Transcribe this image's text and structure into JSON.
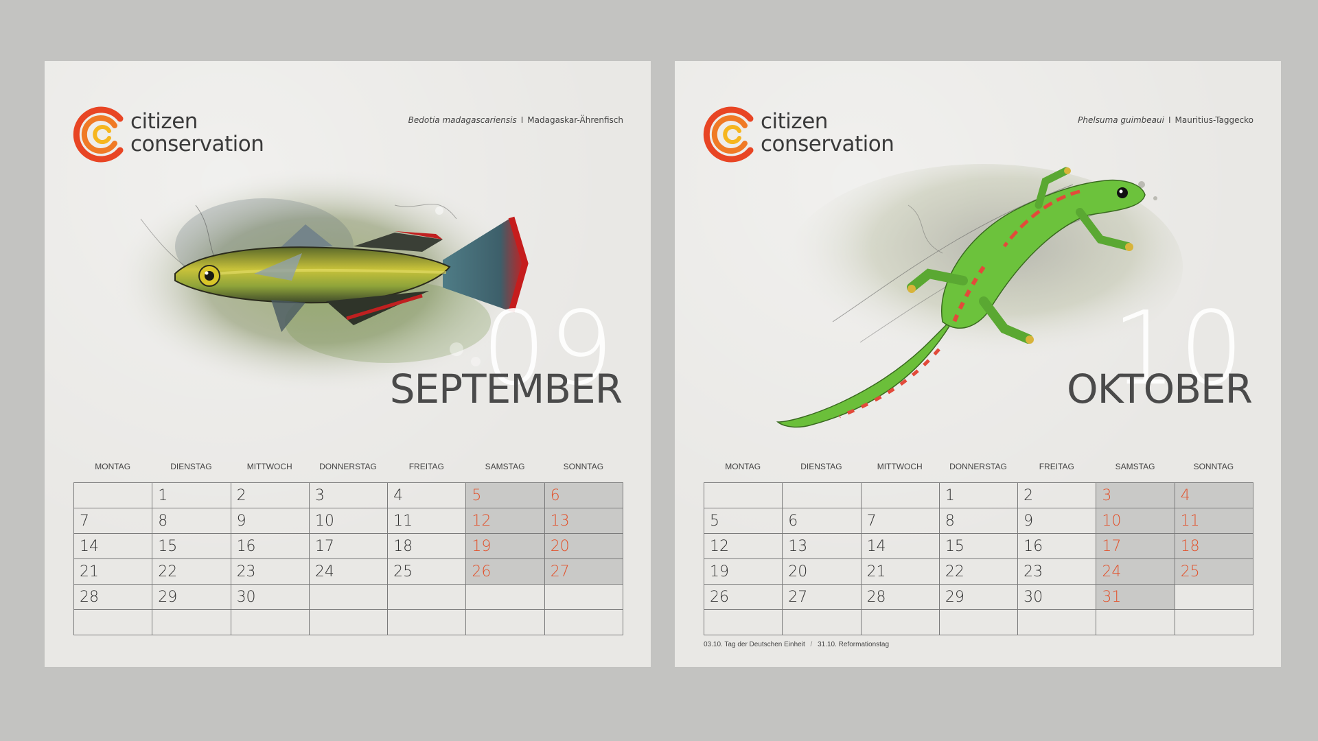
{
  "logo": {
    "line1": "citizen",
    "line2": "conservation"
  },
  "colors": {
    "weekend_text": "#e2522c",
    "weekend_bg": "#c9c9c7",
    "paper": "#e9e8e5",
    "background": "#c3c3c1"
  },
  "weekdays": [
    "MONTAG",
    "DIENSTAG",
    "MITTWOCH",
    "DONNERSTAG",
    "FREITAG",
    "SAMSTAG",
    "SONNTAG"
  ],
  "pages": [
    {
      "species_scientific": "Bedotia madagascariensis",
      "species_separator": "I",
      "species_common": "Madagaskar-Ährenfisch",
      "illustration": "rainbowfish-illustration",
      "month_number": "09",
      "month_name": "SEPTEMBER",
      "weeks": [
        [
          "",
          "1",
          "2",
          "3",
          "4",
          "5",
          "6"
        ],
        [
          "7",
          "8",
          "9",
          "10",
          "11",
          "12",
          "13"
        ],
        [
          "14",
          "15",
          "16",
          "17",
          "18",
          "19",
          "20"
        ],
        [
          "21",
          "22",
          "23",
          "24",
          "25",
          "26",
          "27"
        ],
        [
          "28",
          "29",
          "30",
          "",
          "",
          "",
          ""
        ],
        [
          "",
          "",
          "",
          "",
          "",
          "",
          ""
        ]
      ],
      "footnote": null
    },
    {
      "species_scientific": "Phelsuma guimbeaui",
      "species_separator": "I",
      "species_common": "Mauritius-Taggecko",
      "illustration": "gecko-illustration",
      "month_number": "10",
      "month_name": "OKTOBER",
      "weeks": [
        [
          "",
          "",
          "",
          "1",
          "2",
          "3",
          "4"
        ],
        [
          "5",
          "6",
          "7",
          "8",
          "9",
          "10",
          "11"
        ],
        [
          "12",
          "13",
          "14",
          "15",
          "16",
          "17",
          "18"
        ],
        [
          "19",
          "20",
          "21",
          "22",
          "23",
          "24",
          "25"
        ],
        [
          "26",
          "27",
          "28",
          "29",
          "30",
          "31",
          ""
        ],
        [
          "",
          "",
          "",
          "",
          "",
          "",
          ""
        ]
      ],
      "footnote": {
        "holiday1_date": "03.10.",
        "holiday1_name": "Tag der Deutschen Einheit",
        "separator": "/",
        "holiday2_date": "31.10.",
        "holiday2_name": "Reformationstag"
      }
    }
  ]
}
